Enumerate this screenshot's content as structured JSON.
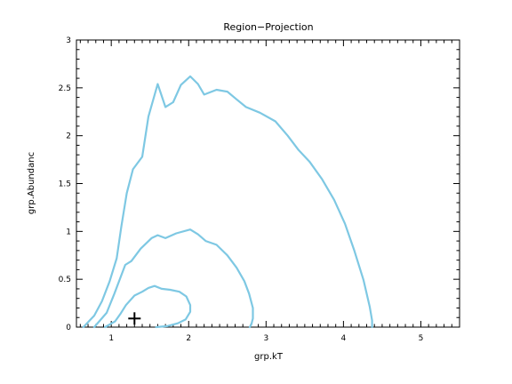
{
  "chart_data": {
    "type": "line",
    "title": "Region−Projection",
    "xlabel": "grp.kT",
    "ylabel": "grp.Abundanc",
    "xlim": [
      0.55,
      5.5
    ],
    "ylim": [
      0,
      3
    ],
    "xticks": [
      1,
      2,
      3,
      4,
      5
    ],
    "yticks": [
      0,
      0.5,
      1,
      1.5,
      2,
      2.5,
      3
    ],
    "xtick_labels": [
      "1",
      "2",
      "3",
      "4",
      "5"
    ],
    "ytick_labels": [
      "0",
      "0.5",
      "1",
      "1.5",
      "2",
      "2.5",
      "3"
    ],
    "grid": false,
    "series": [
      {
        "color": "#7ec8e3",
        "points": [
          [
            0.92,
            0.0
          ],
          [
            1.05,
            0.06
          ],
          [
            1.12,
            0.14
          ],
          [
            1.19,
            0.23
          ],
          [
            1.3,
            0.33
          ],
          [
            1.4,
            0.37
          ],
          [
            1.48,
            0.41
          ],
          [
            1.56,
            0.43
          ],
          [
            1.65,
            0.4
          ],
          [
            1.76,
            0.39
          ],
          [
            1.88,
            0.37
          ],
          [
            1.97,
            0.32
          ],
          [
            2.02,
            0.23
          ],
          [
            2.02,
            0.16
          ],
          [
            1.96,
            0.08
          ],
          [
            1.86,
            0.04
          ],
          [
            1.72,
            0.01
          ],
          [
            1.58,
            0.0
          ]
        ]
      },
      {
        "color": "#7ec8e3",
        "points": [
          [
            0.78,
            0.0
          ],
          [
            0.94,
            0.15
          ],
          [
            1.04,
            0.35
          ],
          [
            1.12,
            0.52
          ],
          [
            1.18,
            0.65
          ],
          [
            1.26,
            0.69
          ],
          [
            1.38,
            0.82
          ],
          [
            1.52,
            0.93
          ],
          [
            1.6,
            0.96
          ],
          [
            1.7,
            0.93
          ],
          [
            1.84,
            0.98
          ],
          [
            2.02,
            1.02
          ],
          [
            2.12,
            0.97
          ],
          [
            2.22,
            0.9
          ],
          [
            2.36,
            0.86
          ],
          [
            2.5,
            0.75
          ],
          [
            2.62,
            0.62
          ],
          [
            2.72,
            0.48
          ],
          [
            2.78,
            0.35
          ],
          [
            2.83,
            0.2
          ],
          [
            2.83,
            0.09
          ],
          [
            2.81,
            0.03
          ],
          [
            2.79,
            0.0
          ]
        ]
      },
      {
        "color": "#7ec8e3",
        "points": [
          [
            0.64,
            0.0
          ],
          [
            0.78,
            0.12
          ],
          [
            0.88,
            0.27
          ],
          [
            0.98,
            0.48
          ],
          [
            1.07,
            0.72
          ],
          [
            1.13,
            1.05
          ],
          [
            1.2,
            1.4
          ],
          [
            1.28,
            1.65
          ],
          [
            1.4,
            1.78
          ],
          [
            1.48,
            2.2
          ],
          [
            1.6,
            2.54
          ],
          [
            1.7,
            2.3
          ],
          [
            1.8,
            2.35
          ],
          [
            1.9,
            2.53
          ],
          [
            2.02,
            2.62
          ],
          [
            2.12,
            2.54
          ],
          [
            2.2,
            2.43
          ],
          [
            2.36,
            2.48
          ],
          [
            2.5,
            2.46
          ],
          [
            2.62,
            2.38
          ],
          [
            2.74,
            2.3
          ],
          [
            2.92,
            2.24
          ],
          [
            3.12,
            2.15
          ],
          [
            3.28,
            2.0
          ],
          [
            3.42,
            1.85
          ],
          [
            3.56,
            1.73
          ],
          [
            3.72,
            1.55
          ],
          [
            3.88,
            1.33
          ],
          [
            4.02,
            1.08
          ],
          [
            4.14,
            0.8
          ],
          [
            4.26,
            0.49
          ],
          [
            4.34,
            0.21
          ],
          [
            4.37,
            0.07
          ],
          [
            4.37,
            0.0
          ]
        ]
      }
    ],
    "markers": [
      {
        "symbol": "plus",
        "x": 1.3,
        "y": 0.09,
        "color": "#000000"
      }
    ]
  }
}
